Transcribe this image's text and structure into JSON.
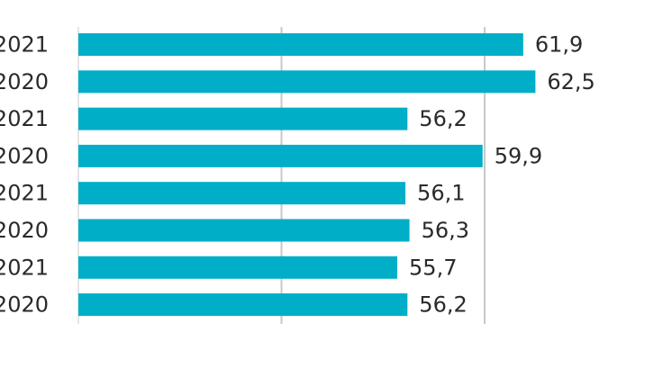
{
  "chart_data": {
    "type": "bar",
    "orientation": "horizontal",
    "categories": [
      "2021",
      "2020",
      "2021",
      "2020",
      "2021",
      "2020",
      "2021",
      "2020"
    ],
    "values": [
      61.9,
      62.5,
      56.2,
      59.9,
      56.1,
      56.3,
      55.7,
      56.2
    ],
    "value_labels": [
      "61,9",
      "62,5",
      "56,2",
      "59,9",
      "56,1",
      "56,3",
      "55,7",
      "56,2"
    ],
    "xlim": [
      40,
      65
    ],
    "gridlines_at": [
      40,
      50
    ],
    "grid": true,
    "bar_color": "#00AEC7",
    "gridline_color": "#C8C8C8"
  }
}
